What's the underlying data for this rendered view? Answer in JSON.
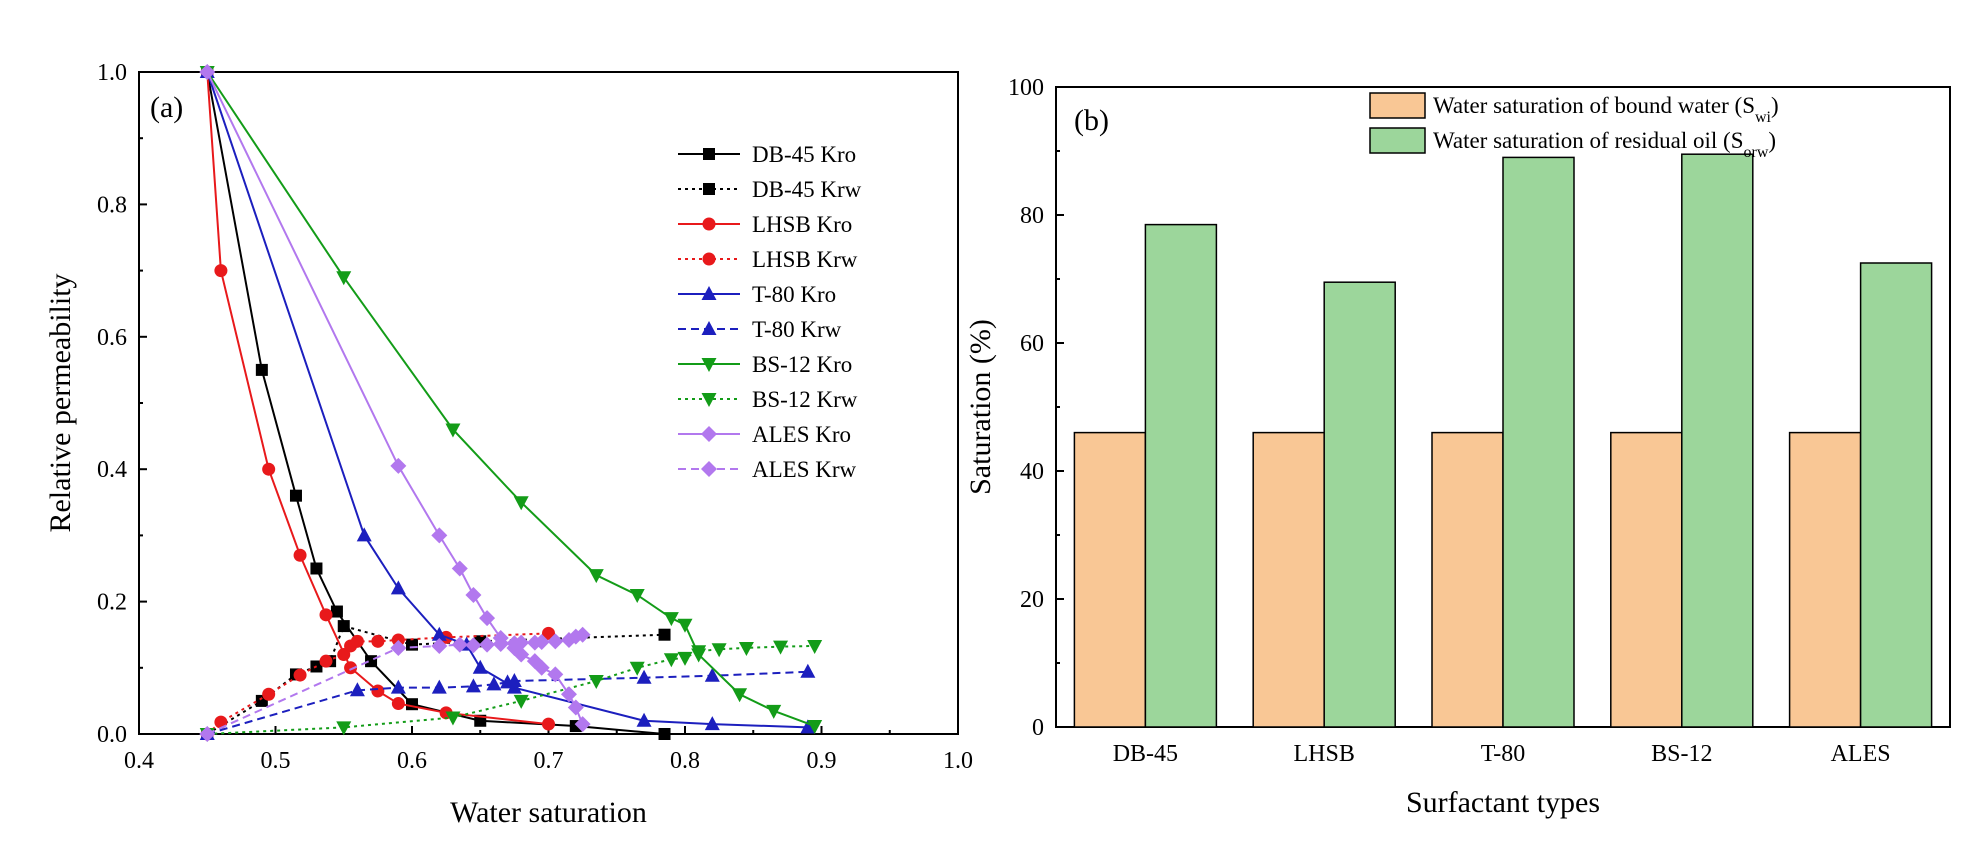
{
  "chart_data": [
    {
      "type": "line",
      "panel_label": "(a)",
      "xlabel": "Water saturation",
      "ylabel": "Relative permeability",
      "xlim": [
        0.4,
        1.0
      ],
      "ylim": [
        0.0,
        1.0
      ],
      "xticks": [
        "0.4",
        "0.5",
        "0.6",
        "0.7",
        "0.8",
        "0.9",
        "1.0"
      ],
      "yticks": [
        "0.0",
        "0.2",
        "0.4",
        "0.6",
        "0.8",
        "1.0"
      ],
      "grid": false,
      "legend_position": "top-right",
      "series": [
        {
          "name": "DB-45 Kro",
          "color": "#000000",
          "marker": "square",
          "dash": "solid",
          "x": [
            0.45,
            0.49,
            0.515,
            0.53,
            0.545,
            0.57,
            0.6,
            0.65,
            0.72,
            0.785
          ],
          "y": [
            1.0,
            0.55,
            0.36,
            0.25,
            0.185,
            0.11,
            0.045,
            0.02,
            0.012,
            0.0
          ]
        },
        {
          "name": "DB-45 Krw",
          "color": "#000000",
          "marker": "square",
          "dash": "dot",
          "x": [
            0.45,
            0.49,
            0.515,
            0.53,
            0.54,
            0.55,
            0.6,
            0.65,
            0.785
          ],
          "y": [
            0.0,
            0.05,
            0.09,
            0.102,
            0.11,
            0.163,
            0.135,
            0.14,
            0.15
          ]
        },
        {
          "name": "LHSB Kro",
          "color": "#e8191b",
          "marker": "circle",
          "dash": "solid",
          "x": [
            0.45,
            0.46,
            0.495,
            0.518,
            0.537,
            0.555,
            0.575,
            0.59,
            0.625,
            0.7
          ],
          "y": [
            1.0,
            0.7,
            0.4,
            0.27,
            0.18,
            0.1,
            0.065,
            0.046,
            0.032,
            0.015
          ]
        },
        {
          "name": "LHSB Krw",
          "color": "#e8191b",
          "marker": "circle",
          "dash": "dot",
          "x": [
            0.45,
            0.46,
            0.495,
            0.518,
            0.537,
            0.55,
            0.555,
            0.56,
            0.575,
            0.59,
            0.625,
            0.7
          ],
          "y": [
            0.0,
            0.018,
            0.06,
            0.089,
            0.11,
            0.12,
            0.133,
            0.14,
            0.14,
            0.142,
            0.146,
            0.152
          ]
        },
        {
          "name": "T-80 Kro",
          "color": "#1c1fbe",
          "marker": "triangle-up",
          "dash": "solid",
          "x": [
            0.45,
            0.565,
            0.59,
            0.62,
            0.64,
            0.65,
            0.675,
            0.77,
            0.82,
            0.89
          ],
          "y": [
            1.0,
            0.3,
            0.22,
            0.15,
            0.135,
            0.1,
            0.07,
            0.02,
            0.015,
            0.01
          ]
        },
        {
          "name": "T-80 Krw",
          "color": "#1c1fbe",
          "marker": "triangle-up",
          "dash": "dash",
          "x": [
            0.45,
            0.56,
            0.59,
            0.62,
            0.645,
            0.66,
            0.67,
            0.675,
            0.77,
            0.82,
            0.89
          ],
          "y": [
            0.0,
            0.066,
            0.07,
            0.07,
            0.072,
            0.075,
            0.078,
            0.08,
            0.085,
            0.088,
            0.094
          ]
        },
        {
          "name": "BS-12 Kro",
          "color": "#139c18",
          "marker": "triangle-down",
          "dash": "solid",
          "x": [
            0.45,
            0.55,
            0.63,
            0.68,
            0.735,
            0.765,
            0.79,
            0.8,
            0.81,
            0.84,
            0.865,
            0.895
          ],
          "y": [
            1.0,
            0.69,
            0.46,
            0.35,
            0.24,
            0.21,
            0.175,
            0.165,
            0.12,
            0.06,
            0.035,
            0.012
          ]
        },
        {
          "name": "BS-12 Krw",
          "color": "#139c18",
          "marker": "triangle-down",
          "dash": "dot",
          "x": [
            0.45,
            0.55,
            0.63,
            0.68,
            0.735,
            0.765,
            0.79,
            0.8,
            0.81,
            0.825,
            0.845,
            0.87,
            0.895
          ],
          "y": [
            0.0,
            0.01,
            0.025,
            0.05,
            0.08,
            0.1,
            0.113,
            0.115,
            0.125,
            0.128,
            0.13,
            0.132,
            0.133
          ]
        },
        {
          "name": "ALES Kro",
          "color": "#b278ee",
          "marker": "diamond",
          "dash": "solid",
          "x": [
            0.45,
            0.59,
            0.62,
            0.635,
            0.645,
            0.655,
            0.665,
            0.675,
            0.68,
            0.69,
            0.695,
            0.705,
            0.715,
            0.72,
            0.725
          ],
          "y": [
            1.0,
            0.405,
            0.3,
            0.25,
            0.21,
            0.175,
            0.145,
            0.13,
            0.12,
            0.11,
            0.1,
            0.09,
            0.06,
            0.04,
            0.015
          ]
        },
        {
          "name": "ALES Krw",
          "color": "#b278ee",
          "marker": "diamond",
          "dash": "dash",
          "x": [
            0.45,
            0.59,
            0.62,
            0.635,
            0.645,
            0.655,
            0.665,
            0.675,
            0.68,
            0.69,
            0.695,
            0.705,
            0.715,
            0.72,
            0.725
          ],
          "y": [
            0.0,
            0.13,
            0.133,
            0.135,
            0.134,
            0.135,
            0.136,
            0.137,
            0.138,
            0.138,
            0.139,
            0.14,
            0.142,
            0.147,
            0.15
          ]
        }
      ]
    },
    {
      "type": "bar",
      "panel_label": "(b)",
      "xlabel": "Surfactant types",
      "ylabel": "Saturation (%)",
      "categories": [
        "DB-45",
        "LHSB",
        "T-80",
        "BS-12",
        "ALES"
      ],
      "ylim": [
        0,
        100
      ],
      "yticks": [
        "0",
        "20",
        "40",
        "60",
        "80",
        "100"
      ],
      "grid": false,
      "legend_position": "top-right",
      "series": [
        {
          "name": "Water saturation of bound water",
          "symbol": "S",
          "subscript": "wi",
          "color": "#f9c795",
          "values": [
            46,
            46,
            46,
            46,
            46
          ]
        },
        {
          "name": "Water saturation of residual oil",
          "symbol": "S",
          "subscript": "orw",
          "color": "#9cd69b",
          "values": [
            78.5,
            69.5,
            89,
            89.5,
            72.5
          ]
        }
      ]
    }
  ]
}
